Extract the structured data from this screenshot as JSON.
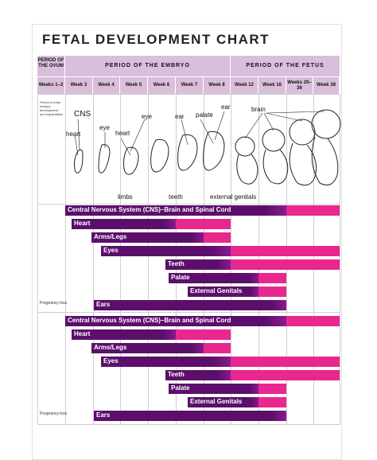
{
  "title": "FETAL DEVELOPMENT CHART",
  "headers": {
    "ovum": "PERIOD OF THE OVUM",
    "embryo": "PERIOD OF THE EMBRYO",
    "fetus": "PERIOD OF THE FETUS"
  },
  "weeks": [
    "Weeks 1–2",
    "Week 3",
    "Week 4",
    "Week 5",
    "Week 6",
    "Week 7",
    "Week 8",
    "Week 12",
    "Week 16",
    "Weeks 20–36",
    "Week 38"
  ],
  "ovum_note": "Period of early embryo development and implantation",
  "pregnancy_loss": "Pregnancy loss",
  "labels": {
    "cns": "CNS",
    "heart": "heart",
    "eye1": "eye",
    "heart2": "heart",
    "eye2": "eye",
    "ear1": "ear",
    "palate": "palate",
    "ear2": "ear",
    "brain": "brain",
    "limbs": "limbs",
    "teeth": "teeth",
    "genitals": "external genitals"
  },
  "bars": [
    "Central Nervous System (CNS)–Brain and Spinal Cord",
    "Heart",
    "Arms/Legs",
    "Eyes",
    "Teeth",
    "Palate",
    "External Genitals",
    "Ears"
  ],
  "colors": {
    "header": "#d9bfdc",
    "critical": "#5b0f6b",
    "minor": "#e8278f"
  }
}
